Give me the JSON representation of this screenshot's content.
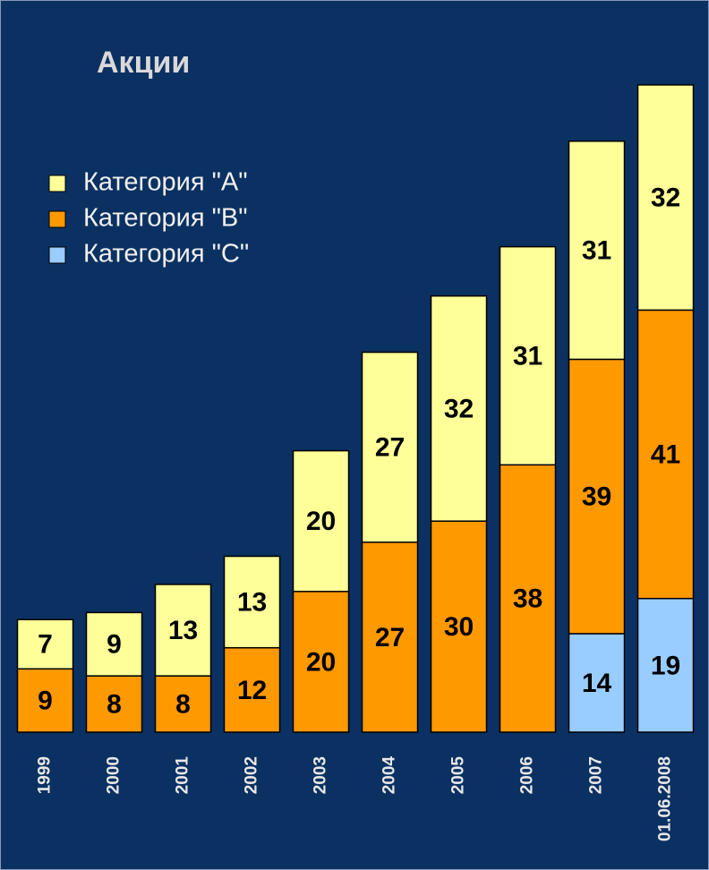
{
  "chart_data": {
    "type": "stacked_bar",
    "title": "Акции",
    "categories": [
      "1999",
      "2000",
      "2001",
      "2002",
      "2003",
      "2004",
      "2005",
      "2006",
      "2007",
      "01.06.2008"
    ],
    "series": [
      {
        "name": "Категория \"A\"",
        "color": "#ffff99",
        "values": [
          7,
          9,
          13,
          13,
          20,
          27,
          32,
          31,
          31,
          32
        ]
      },
      {
        "name": "Категория \"B\"",
        "color": "#ff9900",
        "values": [
          9,
          8,
          8,
          12,
          20,
          27,
          30,
          38,
          39,
          41
        ]
      },
      {
        "name": "Категория \"C\"",
        "color": "#99ccff",
        "values": [
          null,
          null,
          null,
          null,
          null,
          null,
          null,
          null,
          14,
          19
        ]
      }
    ],
    "ylim": [
      0,
      100
    ],
    "legend": "upper left"
  }
}
